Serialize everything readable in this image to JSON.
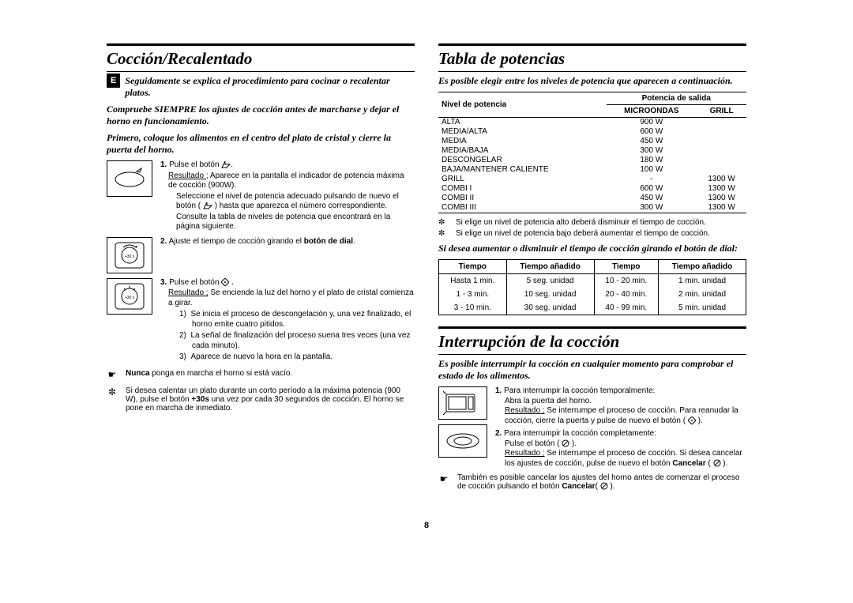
{
  "page_number": "8",
  "language_badge": "E",
  "left": {
    "title": "Cocción/Recalentado",
    "intro": [
      "Seguidamente se explica el procedimiento para cocinar o recalentar platos.",
      "Compruebe SIEMPRE los ajustes de cocción antes de marcharse y dejar el horno en funcionamiento.",
      "Primero, coloque los alimentos en el centro del plato de cristal y cierre la puerta del horno."
    ],
    "steps": {
      "s1_label": "1.",
      "s1_text": "Pulse el botón ",
      "s1_res_label": "Resultado ;",
      "s1_res": " Aparece en la pantalla el indicador de potencia máxima de cocción (900W).",
      "s1_line2": "Seleccione el nivel de potencia adecuado pulsando de nuevo el botón ( ",
      "s1_line2b": " ) hasta que aparezca el número correspondiente.",
      "s1_line3": "Consulte la tabla de niveles de potencia que encontrará en la página siguiente.",
      "s2_label": "2.",
      "s2_text": "Ajuste el tiempo de cocción girando el ",
      "s2_bold": "botón de dial",
      "s2_tail": ".",
      "s3_label": "3.",
      "s3_text": "Pulse el botón ",
      "s3_res_label": "Resultado ;",
      "s3_res": " Se enciende la luz del horno y el plato de cristal comienza a girar.",
      "s3_li1": "Se inicia el proceso de descongelación y, una vez finalizado, el horno emite cuatro pitidos.",
      "s3_li2": "La señal de finalización del proceso suena tres veces (una vez cada minuto).",
      "s3_li3": "Aparece de nuevo la hora en la  pantalla."
    },
    "notes": {
      "n1_sym": "☛",
      "n1_bold": "Nunca",
      "n1_text": " ponga en marcha el horno si está vacío.",
      "n2_sym": "✼",
      "n2_text": "Si desea calentar un plato durante un corto período a la máxima potencia (900 W), pulse el botón ",
      "n2_bold": "+30s",
      "n2_tail": " una vez por cada 30 segundos de cocción. El horno se pone en marcha de inmediato."
    }
  },
  "right": {
    "title1": "Tabla de potencias",
    "intro1": "Es posible elegir entre los niveles de potencia que aparecen a continuación.",
    "power_table": {
      "h_level": "Nivel de potencia",
      "h_output": "Potencia de salida",
      "h_micro": "MICROONDAS",
      "h_grill": "GRILL",
      "rows": [
        {
          "n": "ALTA",
          "m": "900 W",
          "g": ""
        },
        {
          "n": "MEDIA/ALTA",
          "m": "600 W",
          "g": ""
        },
        {
          "n": "MEDIA",
          "m": "450 W",
          "g": ""
        },
        {
          "n": "MEDIA/BAJA",
          "m": "300 W",
          "g": ""
        },
        {
          "n": "DESCONGELAR",
          "m": "180 W",
          "g": ""
        },
        {
          "n": "BAJA/MANTENER CALIENTE",
          "m": "100 W",
          "g": ""
        },
        {
          "n": "GRILL",
          "m": "-",
          "g": "1300 W"
        },
        {
          "n": "COMBI I",
          "m": "600 W",
          "g": "1300 W"
        },
        {
          "n": "COMBI II",
          "m": "450 W",
          "g": "1300 W"
        },
        {
          "n": "COMBI III",
          "m": "300 W",
          "g": "1300 W"
        }
      ]
    },
    "bullets": {
      "b1": "Si elige un nivel de potencia alto deberá disminuir el tiempo de cocción.",
      "b2": "Si elige un nivel de potencia bajo deberá aumentar el tiempo de cocción."
    },
    "intro2": "Si desea aumentar o disminuir el tiempo de cocción girando el botón de dial:",
    "time_table": {
      "h1": "Tiempo",
      "h2": "Tiempo añadido",
      "h3": "Tiempo",
      "h4": "Tiempo añadido",
      "rows": [
        {
          "a": "Hasta 1 min.",
          "b": "5 seg. unidad",
          "c": "10 - 20 min.",
          "d": "1 min. unidad"
        },
        {
          "a": "1 - 3 min.",
          "b": "10 seg. unidad",
          "c": "20 - 40 min.",
          "d": "2 min. unidad"
        },
        {
          "a": "3 - 10 min.",
          "b": "30 seg. unidad",
          "c": "40 - 99 min.",
          "d": "5 min. unidad"
        }
      ]
    },
    "title2": "Interrupción de la cocción",
    "intro3": "Es posible interrumpir la cocción en cualquier momento para comprobar el estado de los alimentos.",
    "isteps": {
      "s1_label": "1.",
      "s1_a": "Para interrumpir la cocción temporalmente:",
      "s1_b": "Abra la puerta del horno.",
      "s1_res_label": "Resultado ;",
      "s1_res": " Se interrumpe el proceso de cocción. Para reanudar la cocción, cierre la puerta y pulse de nuevo el botón ( ",
      "s1_tail": " ).",
      "s2_label": "2.",
      "s2_a": "Para interrumpir la cocción completamente:",
      "s2_b": "Pulse el botón ( ",
      "s2_btail": " ).",
      "s2_res_label": "Resultado ;",
      "s2_res": " Se interrumpe el proceso de cocción. Si desea cancelar los ajustes de cocción, pulse de nuevo el botón ",
      "s2_bold": "Cancelar",
      "s2_tail2": " ( ",
      "s2_tail3": " )."
    },
    "note": {
      "sym": "☛",
      "text": "También es posible cancelar los ajustes del horno antes de comenzar el proceso de cocción pulsando el botón ",
      "bold": "Cancelar",
      "tail": "( ",
      "tail2": " )."
    }
  }
}
